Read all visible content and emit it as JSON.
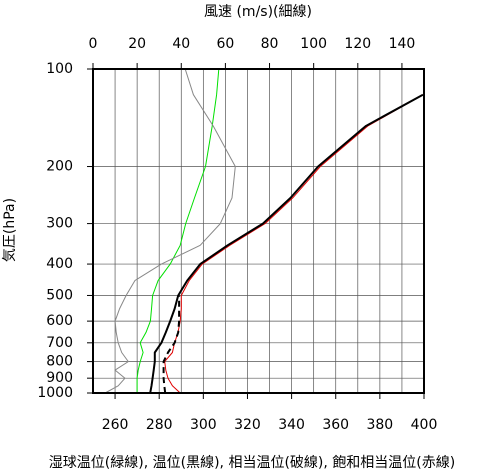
{
  "chart_data": {
    "type": "line",
    "title": "風速 (m/s)(細線)",
    "ylabel": "気圧(hPa)",
    "xlabel": "湿球温位(緑線), 温位(黒線), 相当温位(破線), 飽和相当温位(赤線)",
    "y": [
      1000,
      950,
      900,
      850,
      800,
      750,
      700,
      650,
      600,
      550,
      500,
      450,
      400,
      350,
      300,
      250,
      200,
      150,
      120,
      100
    ],
    "ylim": [
      1000,
      100
    ],
    "ylog": true,
    "yticks": [
      100,
      200,
      300,
      400,
      500,
      600,
      700,
      800,
      900,
      1000
    ],
    "xlim": [
      250,
      400
    ],
    "xticks": [
      260,
      280,
      300,
      320,
      340,
      360,
      380,
      400
    ],
    "x2lim": [
      0,
      150
    ],
    "x2ticks": [
      0,
      20,
      40,
      60,
      80,
      100,
      120,
      140
    ],
    "grid": true,
    "series": [
      {
        "name": "湿球温位",
        "color": "#00e000",
        "dash": false,
        "width": 1,
        "values": [
          270,
          270,
          270,
          270.5,
          271.4,
          272.7,
          271.4,
          274,
          276,
          276.5,
          277,
          279.5,
          285,
          289.5,
          292,
          296,
          301,
          304,
          306,
          307
        ]
      },
      {
        "name": "飽和相当温位",
        "color": "#e00000",
        "dash": false,
        "width": 1,
        "values": [
          289.5,
          286,
          284,
          283,
          282.5,
          286,
          287,
          288.5,
          289.5,
          290,
          290,
          293.6,
          299.5,
          312,
          328,
          340.5,
          353,
          374.5,
          399.5,
          null
        ]
      },
      {
        "name": "温位",
        "color": "#000000",
        "dash": false,
        "width": 2,
        "values": [
          275.9,
          276.5,
          277,
          277.5,
          278,
          278,
          281,
          283,
          285,
          287,
          288.6,
          292.7,
          298.6,
          311,
          327,
          339.5,
          352,
          373.6,
          399.5,
          null
        ]
      },
      {
        "name": "相当温位",
        "color": "#000000",
        "dash": true,
        "width": 2,
        "values": [
          282.7,
          282.3,
          282,
          282,
          282,
          284,
          287,
          288.6,
          289,
          289,
          289,
          null,
          null,
          null,
          null,
          null,
          null,
          null,
          null,
          null
        ]
      },
      {
        "name": "風速",
        "color": "#888888",
        "dash": false,
        "width": 1,
        "axis": "x2",
        "values": [
          5.5,
          11.4,
          14.5,
          10,
          16,
          13,
          11.4,
          10.5,
          10,
          12,
          15,
          19,
          31,
          48.6,
          57.7,
          63,
          64.5,
          54.5,
          45.5,
          41.8
        ]
      }
    ]
  }
}
